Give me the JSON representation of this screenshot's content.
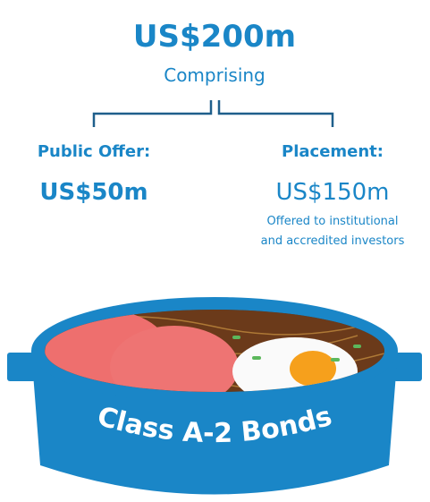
{
  "total": {
    "amount": "US$200m",
    "caption": "Comprising"
  },
  "public_offer": {
    "label": "Public Offer:",
    "amount": "US$50m"
  },
  "placement": {
    "label": "Placement:",
    "amount": "US$150m",
    "note": [
      "Offered to institutional",
      "and accredited investors"
    ]
  },
  "product": {
    "label": "Class A-2 Bonds"
  }
}
